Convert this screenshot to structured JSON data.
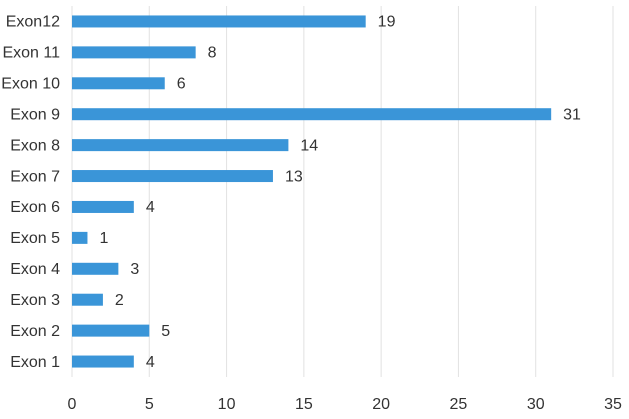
{
  "chart_data": {
    "type": "barh",
    "categories": [
      "Exon12",
      "Exon 11",
      "Exon 10",
      "Exon 9",
      "Exon 8",
      "Exon 7",
      "Exon 6",
      "Exon 5",
      "Exon 4",
      "Exon 3",
      "Exon 2",
      "Exon 1"
    ],
    "values": [
      19,
      8,
      6,
      31,
      14,
      13,
      4,
      1,
      3,
      2,
      5,
      4
    ],
    "color": "#3a95d8",
    "xlim": [
      0,
      35
    ],
    "xticks": [
      0,
      5,
      10,
      15,
      20,
      25,
      30,
      35
    ],
    "grid": true
  }
}
